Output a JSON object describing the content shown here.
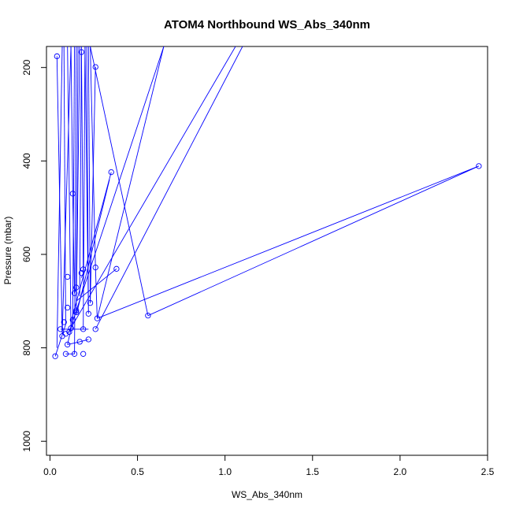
{
  "chart_data": {
    "type": "line",
    "title": "ATOM4 Northbound WS_Abs_340nm",
    "xlabel": "WS_Abs_340nm",
    "ylabel": "Pressure (mbar)",
    "xlim": [
      -0.02,
      2.5
    ],
    "ylim": [
      1030,
      155
    ],
    "y_reversed": true,
    "x_ticks": [
      0.0,
      0.5,
      1.0,
      1.5,
      2.0,
      2.5
    ],
    "x_tick_labels": [
      "0.0",
      "0.5",
      "1.0",
      "1.5",
      "2.0",
      "2.5"
    ],
    "y_ticks": [
      200,
      400,
      600,
      800,
      1000
    ],
    "y_tick_labels": [
      "200",
      "400",
      "600",
      "800",
      "1000"
    ],
    "grid": false,
    "legend": "none",
    "series": [
      {
        "color": "#0000ff",
        "marker": "open-circle",
        "points": [
          [
            0.03,
            818
          ],
          [
            0.09,
            813
          ],
          [
            0.14,
            813
          ],
          [
            0.19,
            813
          ],
          [
            0.1,
            793
          ],
          [
            0.17,
            787
          ],
          [
            0.22,
            782
          ],
          [
            0.26,
            760
          ],
          [
            0.06,
            760
          ],
          [
            0.12,
            758
          ],
          [
            0.19,
            760
          ],
          [
            0.27,
            737
          ],
          [
            0.56,
            731
          ],
          [
            2.45,
            411
          ],
          [
            0.22,
            727
          ],
          [
            0.15,
            724
          ],
          [
            0.15,
            720
          ],
          [
            0.1,
            714
          ],
          [
            0.23,
            704
          ],
          [
            0.14,
            683
          ],
          [
            0.15,
            671
          ],
          [
            0.1,
            648
          ],
          [
            0.18,
            640
          ],
          [
            0.19,
            632
          ],
          [
            0.26,
            628
          ],
          [
            0.38,
            631
          ],
          [
            0.35,
            424
          ],
          [
            0.13,
            470
          ],
          [
            0.26,
            199
          ],
          [
            0.18,
            167
          ],
          [
            0.04,
            176
          ],
          [
            0.07,
            775
          ],
          [
            0.09,
            770
          ],
          [
            0.11,
            766
          ],
          [
            0.08,
            745
          ],
          [
            0.13,
            740
          ]
        ],
        "segments": [
          [
            [
              0.03,
              818
            ],
            [
              0.09,
              750
            ]
          ],
          [
            [
              0.09,
              750
            ],
            [
              0.08,
              155
            ]
          ],
          [
            [
              0.04,
              176
            ],
            [
              0.07,
              770
            ]
          ],
          [
            [
              0.07,
              770
            ],
            [
              0.12,
              155
            ]
          ],
          [
            [
              0.1,
              793
            ],
            [
              0.12,
              760
            ],
            [
              0.1,
              155
            ]
          ],
          [
            [
              0.12,
              155
            ],
            [
              0.13,
              470
            ]
          ],
          [
            [
              0.13,
              470
            ],
            [
              0.14,
              683
            ]
          ],
          [
            [
              0.14,
              683
            ],
            [
              0.15,
              671
            ],
            [
              0.16,
              155
            ]
          ],
          [
            [
              0.18,
              167
            ],
            [
              0.19,
              632
            ],
            [
              0.19,
              640
            ],
            [
              0.18,
              650
            ]
          ],
          [
            [
              0.15,
              724
            ],
            [
              0.17,
              155
            ]
          ],
          [
            [
              0.2,
              155
            ],
            [
              0.22,
              727
            ],
            [
              0.21,
              155
            ]
          ],
          [
            [
              0.23,
              704
            ],
            [
              0.22,
              155
            ]
          ],
          [
            [
              0.26,
              199
            ],
            [
              0.23,
              704
            ]
          ],
          [
            [
              0.23,
              155
            ],
            [
              0.26,
              628
            ]
          ],
          [
            [
              0.26,
              628
            ],
            [
              0.27,
              737
            ]
          ],
          [
            [
              0.23,
              155
            ],
            [
              0.56,
              731
            ]
          ],
          [
            [
              0.56,
              731
            ],
            [
              2.45,
              411
            ],
            [
              0.27,
              737
            ]
          ],
          [
            [
              0.27,
              737
            ],
            [
              0.65,
              155
            ]
          ],
          [
            [
              0.26,
              760
            ],
            [
              1.1,
              155
            ]
          ],
          [
            [
              0.1,
              770
            ],
            [
              1.06,
              155
            ]
          ],
          [
            [
              0.11,
              766
            ],
            [
              0.65,
              155
            ]
          ],
          [
            [
              0.15,
              730
            ],
            [
              0.34,
              440
            ]
          ],
          [
            [
              0.12,
              745
            ],
            [
              0.35,
              424
            ]
          ],
          [
            [
              0.15,
              700
            ],
            [
              0.38,
              631
            ]
          ],
          [
            [
              0.06,
              760
            ],
            [
              0.22,
              760
            ]
          ],
          [
            [
              0.09,
              813
            ],
            [
              0.14,
              813
            ]
          ],
          [
            [
              0.1,
              793
            ],
            [
              0.17,
              787
            ],
            [
              0.22,
              782
            ]
          ],
          [
            [
              0.04,
              800
            ],
            [
              0.07,
              155
            ]
          ],
          [
            [
              0.13,
              760
            ],
            [
              0.14,
              155
            ]
          ],
          [
            [
              0.15,
              155
            ],
            [
              0.14,
              813
            ]
          ],
          [
            [
              0.19,
              760
            ],
            [
              0.2,
              155
            ]
          ],
          [
            [
              0.17,
              690
            ],
            [
              0.18,
              155
            ]
          ]
        ]
      }
    ]
  }
}
